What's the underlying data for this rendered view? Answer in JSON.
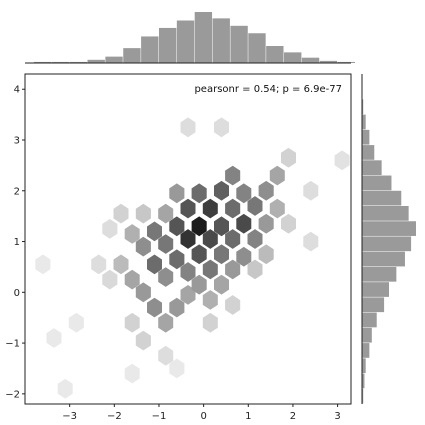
{
  "chart_data": {
    "type": "hexbin",
    "title": "",
    "xlabel": "",
    "ylabel": "",
    "xlim": [
      -4,
      3.3
    ],
    "ylim": [
      -2.2,
      4.3
    ],
    "x_ticks": [
      -3,
      -2,
      -1,
      0,
      1,
      2,
      3
    ],
    "x_tick_labels": [
      "−3",
      "−2",
      "−1",
      "0",
      "1",
      "2",
      "3"
    ],
    "y_ticks": [
      -2,
      -1,
      0,
      1,
      2,
      3,
      4
    ],
    "y_tick_labels": [
      "−2",
      "−1",
      "0",
      "1",
      "2",
      "3",
      "4"
    ],
    "annotation": "pearsonr = 0.54; p = 6.9e-77",
    "hexbin": {
      "gridsize": 0.33,
      "cells": [
        [
          -1.6,
          1.15,
          0.3
        ],
        [
          -1.35,
          1.55,
          0.2
        ],
        [
          -1.35,
          0.9,
          0.45
        ],
        [
          -1.1,
          1.2,
          0.55
        ],
        [
          -1.1,
          0.55,
          0.6
        ],
        [
          -0.85,
          0.95,
          0.55
        ],
        [
          -0.85,
          1.55,
          0.35
        ],
        [
          -0.85,
          0.3,
          0.45
        ],
        [
          -0.6,
          1.3,
          0.7
        ],
        [
          -0.6,
          0.65,
          0.6
        ],
        [
          -0.6,
          1.95,
          0.4
        ],
        [
          -0.35,
          1.05,
          0.85
        ],
        [
          -0.35,
          1.65,
          0.7
        ],
        [
          -0.35,
          0.4,
          0.5
        ],
        [
          -0.1,
          1.3,
          0.95
        ],
        [
          -0.1,
          0.75,
          0.7
        ],
        [
          -0.1,
          1.95,
          0.6
        ],
        [
          0.15,
          1.05,
          0.75
        ],
        [
          0.15,
          1.65,
          0.8
        ],
        [
          0.15,
          0.45,
          0.55
        ],
        [
          0.4,
          1.3,
          0.7
        ],
        [
          0.4,
          2.0,
          0.65
        ],
        [
          0.4,
          0.75,
          0.55
        ],
        [
          0.65,
          1.05,
          0.6
        ],
        [
          0.65,
          1.65,
          0.6
        ],
        [
          0.65,
          2.3,
          0.5
        ],
        [
          0.9,
          1.35,
          0.75
        ],
        [
          0.9,
          0.7,
          0.45
        ],
        [
          0.9,
          1.95,
          0.5
        ],
        [
          1.15,
          1.05,
          0.5
        ],
        [
          1.15,
          1.7,
          0.55
        ],
        [
          1.4,
          1.35,
          0.4
        ],
        [
          1.4,
          2.0,
          0.45
        ],
        [
          1.65,
          2.3,
          0.35
        ],
        [
          1.65,
          1.65,
          0.3
        ],
        [
          -1.85,
          0.55,
          0.25
        ],
        [
          -1.85,
          1.55,
          0.15
        ],
        [
          -1.6,
          0.25,
          0.35
        ],
        [
          -1.35,
          0.0,
          0.4
        ],
        [
          -1.1,
          -0.3,
          0.45
        ],
        [
          -0.85,
          -0.6,
          0.35
        ],
        [
          -0.6,
          -0.3,
          0.4
        ],
        [
          -0.35,
          -0.05,
          0.35
        ],
        [
          -0.1,
          0.15,
          0.4
        ],
        [
          0.15,
          -0.15,
          0.3
        ],
        [
          0.4,
          0.15,
          0.35
        ],
        [
          0.65,
          0.45,
          0.4
        ],
        [
          -2.35,
          0.55,
          0.1
        ],
        [
          -2.1,
          0.25,
          0.12
        ],
        [
          -2.1,
          1.25,
          0.1
        ],
        [
          -1.6,
          -0.6,
          0.15
        ],
        [
          -1.35,
          -0.95,
          0.15
        ],
        [
          -0.85,
          -1.25,
          0.1
        ],
        [
          0.15,
          -0.6,
          0.15
        ],
        [
          0.65,
          -0.25,
          0.15
        ],
        [
          1.15,
          0.45,
          0.2
        ],
        [
          1.4,
          0.75,
          0.25
        ],
        [
          1.9,
          1.35,
          0.15
        ],
        [
          1.9,
          2.65,
          0.15
        ],
        [
          2.4,
          2.0,
          0.1
        ],
        [
          -3.6,
          0.55,
          0.05
        ],
        [
          -3.35,
          -0.9,
          0.05
        ],
        [
          -2.85,
          -0.6,
          0.05
        ],
        [
          -1.6,
          -1.6,
          0.05
        ],
        [
          -0.35,
          3.25,
          0.1
        ],
        [
          0.4,
          3.25,
          0.1
        ],
        [
          2.4,
          1.0,
          0.1
        ],
        [
          3.1,
          2.6,
          0.08
        ],
        [
          -3.1,
          -1.9,
          0.05
        ],
        [
          -0.6,
          -1.5,
          0.05
        ]
      ]
    },
    "marginal_x": {
      "bin_edges": [
        -3.8,
        -3.4,
        -3.0,
        -2.6,
        -2.2,
        -1.8,
        -1.4,
        -1.0,
        -0.6,
        -0.2,
        0.2,
        0.6,
        1.0,
        1.4,
        1.8,
        2.2,
        2.6,
        3.0,
        3.4
      ],
      "counts": [
        1,
        1,
        1,
        3,
        6,
        14,
        25,
        33,
        40,
        48,
        42,
        35,
        28,
        16,
        10,
        5,
        2,
        1
      ]
    },
    "marginal_y": {
      "bin_edges": [
        -2.2,
        -1.9,
        -1.6,
        -1.3,
        -1.0,
        -0.7,
        -0.4,
        -0.1,
        0.2,
        0.5,
        0.8,
        1.1,
        1.4,
        1.7,
        2.0,
        2.3,
        2.6,
        2.9,
        3.2,
        3.5,
        3.8
      ],
      "counts": [
        1,
        2,
        3,
        6,
        8,
        12,
        18,
        22,
        28,
        35,
        40,
        44,
        38,
        32,
        24,
        16,
        10,
        6,
        3,
        1
      ]
    },
    "color_scale": {
      "min_color": "#f4f4f4",
      "max_color": "#111111"
    },
    "marginal_color": "#9a9a9a"
  }
}
